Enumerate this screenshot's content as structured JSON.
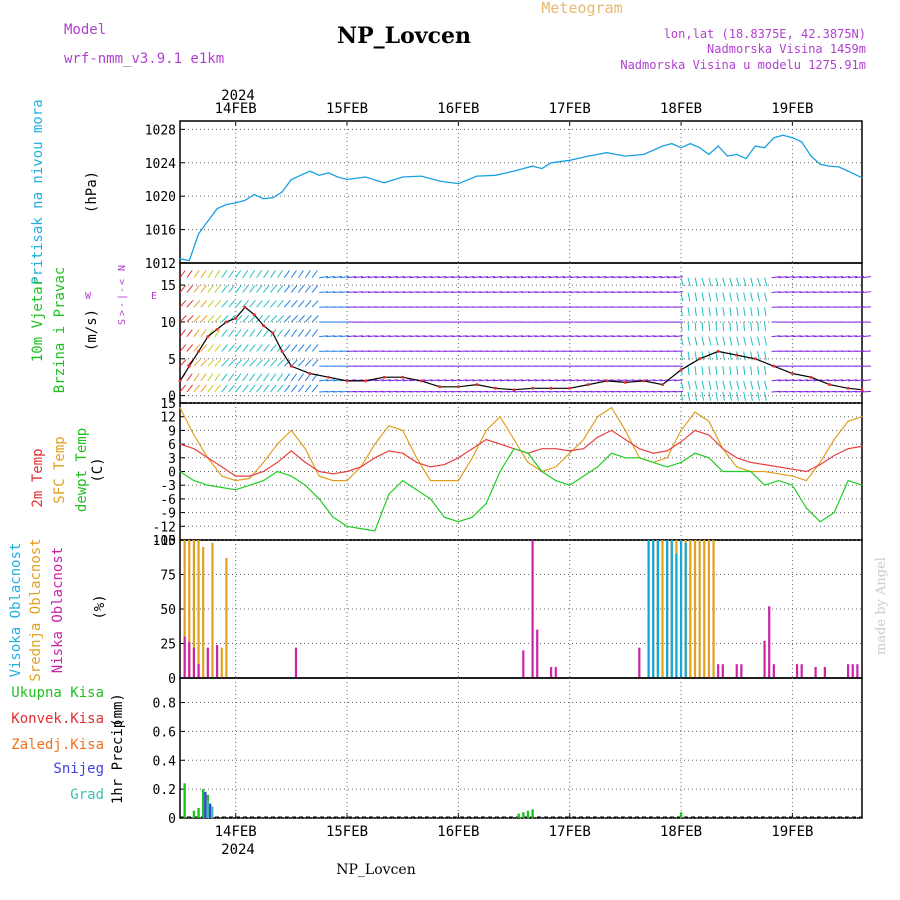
{
  "header": {
    "model_label": "Model",
    "model_name": "wrf-nmm_v3.9.1 e1km",
    "station": "NP_Lovcen",
    "product": "Meteogram",
    "lonlat": "lon,lat (18.8375E, 42.3875N)",
    "elevation": "Nadmorska Visina 1459m",
    "model_elevation": "Nadmorska Visina u modelu 1275.91m",
    "footer_station": "NP_Lovcen",
    "credit": "made by Angel"
  },
  "time_axis": {
    "year": "2024",
    "day_labels": [
      "14FEB",
      "15FEB",
      "16FEB",
      "17FEB",
      "18FEB",
      "19FEB"
    ],
    "day_hours": [
      12,
      36,
      60,
      84,
      108,
      132
    ],
    "range_hours": [
      0,
      147
    ]
  },
  "colors": {
    "pressure": "#1aa0e0",
    "temp2m": "#e84040",
    "sfc": "#e0a020",
    "dew": "#22cc22",
    "high": "#10a8e0",
    "mid": "#e0a020",
    "low": "#cc22aa",
    "snow": "#4040e0",
    "grid": "#666666",
    "purple": "#b040d0",
    "cyan": "#20b0e0",
    "green": "#20c020",
    "red": "#e03030",
    "orange": "#f07020",
    "gray_credit": "#cccccc",
    "wind_low": "#e03030",
    "wind_mid": "#20c0c0",
    "wind_high": "#8020e0"
  },
  "chart_data": [
    {
      "type": "line",
      "panel": "pressure",
      "ylabel_main": "Pritisak na nivou mora",
      "unit": "(hPa)",
      "yticks": [
        1012,
        1016,
        1020,
        1024,
        1028
      ],
      "ylim": [
        1012,
        1029
      ],
      "series": [
        {
          "name": "Pritisak na nivou mora",
          "x": [
            0,
            2,
            4,
            6,
            8,
            10,
            12,
            14,
            16,
            18,
            20,
            22,
            24,
            26,
            28,
            30,
            32,
            34,
            36,
            40,
            44,
            48,
            52,
            56,
            60,
            64,
            68,
            72,
            76,
            78,
            80,
            84,
            88,
            92,
            96,
            100,
            104,
            106,
            108,
            110,
            112,
            114,
            116,
            118,
            120,
            122,
            124,
            126,
            128,
            130,
            132,
            134,
            136,
            138,
            140,
            142,
            144,
            147
          ],
          "values": [
            1012.5,
            1012.3,
            1015.5,
            1017,
            1018.5,
            1019,
            1019.2,
            1019.5,
            1020.2,
            1019.7,
            1019.8,
            1020.5,
            1022,
            1022.5,
            1023,
            1022.5,
            1022.8,
            1022.3,
            1022.0,
            1022.3,
            1021.6,
            1022.3,
            1022.4,
            1021.8,
            1021.5,
            1022.4,
            1022.5,
            1023.0,
            1023.6,
            1023.3,
            1024,
            1024.3,
            1024.8,
            1025.2,
            1024.8,
            1025.0,
            1026,
            1026.3,
            1025.8,
            1026.3,
            1025.8,
            1025,
            1026,
            1024.8,
            1025.0,
            1024.5,
            1026.0,
            1025.8,
            1027.0,
            1027.3,
            1027.0,
            1026.5,
            1024.8,
            1023.8,
            1023.6,
            1023.5,
            1023.0,
            1022.2
          ]
        }
      ]
    },
    {
      "type": "line",
      "panel": "wind",
      "ylabel_main": "10m Vjetar",
      "ylabel_sub": "Brzina i Pravac",
      "unit": "(m/s)",
      "yticks": [
        0,
        5,
        10,
        15
      ],
      "ylim": [
        -1,
        18
      ],
      "direction_labels": [
        "N",
        "<",
        "-",
        "|",
        "-",
        ">",
        "S"
      ],
      "direction_we": [
        "W",
        "E"
      ],
      "series": [
        {
          "name": "10m Vjetar",
          "x": [
            0,
            2,
            4,
            6,
            8,
            10,
            12,
            14,
            16,
            18,
            20,
            22,
            24,
            28,
            32,
            36,
            40,
            44,
            48,
            52,
            56,
            60,
            64,
            68,
            72,
            76,
            80,
            84,
            88,
            92,
            96,
            100,
            104,
            108,
            112,
            116,
            120,
            124,
            128,
            132,
            136,
            140,
            144,
            147
          ],
          "values": [
            2,
            4,
            6,
            8,
            9,
            10,
            10.5,
            12,
            11,
            9.5,
            8.5,
            6,
            4,
            3,
            2.5,
            2,
            2,
            2.5,
            2.5,
            2,
            1.2,
            1.2,
            1.5,
            1,
            0.8,
            1,
            1,
            1,
            1.5,
            2,
            1.8,
            2,
            1.5,
            3.5,
            5,
            6,
            5.5,
            5,
            4,
            3,
            2.5,
            1.5,
            1,
            0.8
          ]
        }
      ]
    },
    {
      "type": "line",
      "panel": "temperature",
      "ylabels": [
        "2m Temp",
        "SFC Temp",
        "dewpt Temp"
      ],
      "unit": "(C)",
      "yticks": [
        15,
        12,
        9,
        6,
        3,
        0,
        -3,
        -6,
        -9,
        -12,
        -15
      ],
      "ylim": [
        -15,
        15
      ],
      "series": [
        {
          "name": "2m Temp",
          "x": [
            0,
            3,
            6,
            9,
            12,
            15,
            18,
            21,
            24,
            27,
            30,
            33,
            36,
            39,
            42,
            45,
            48,
            51,
            54,
            57,
            60,
            63,
            66,
            69,
            72,
            75,
            78,
            81,
            84,
            87,
            90,
            93,
            96,
            99,
            102,
            105,
            108,
            111,
            114,
            117,
            120,
            123,
            126,
            129,
            132,
            135,
            138,
            141,
            144,
            147
          ],
          "values": [
            6,
            5,
            3,
            1,
            -1,
            -1,
            0,
            2,
            4.5,
            2,
            0,
            -0.5,
            0,
            1,
            3,
            4.5,
            4,
            2,
            1,
            1.5,
            3,
            5,
            7,
            6,
            5,
            4,
            5,
            5,
            4.5,
            5,
            7.5,
            9,
            7,
            5,
            4,
            4.5,
            6.5,
            9,
            8,
            5,
            3,
            2,
            1.5,
            1,
            0.5,
            0,
            1.5,
            3.5,
            5,
            5.5
          ]
        },
        {
          "name": "SFC Temp",
          "x": [
            0,
            3,
            6,
            9,
            12,
            15,
            18,
            21,
            24,
            27,
            30,
            33,
            36,
            39,
            42,
            45,
            48,
            51,
            54,
            57,
            60,
            63,
            66,
            69,
            72,
            75,
            78,
            81,
            84,
            87,
            90,
            93,
            96,
            99,
            102,
            105,
            108,
            111,
            114,
            117,
            120,
            123,
            126,
            129,
            132,
            135,
            138,
            141,
            144,
            147
          ],
          "values": [
            14,
            8,
            3,
            -1,
            -2,
            -1.5,
            2,
            6,
            9,
            5,
            -1,
            -2,
            -2,
            1,
            6,
            10,
            9,
            3,
            -2,
            -2,
            -2,
            3,
            9,
            12,
            7,
            2,
            0,
            1,
            4,
            7,
            12,
            14,
            9,
            3,
            2,
            3,
            9,
            13,
            11,
            5,
            1,
            0,
            0,
            -0.5,
            -1,
            -2,
            2,
            7,
            11,
            12
          ]
        },
        {
          "name": "dewpt Temp",
          "x": [
            0,
            3,
            6,
            9,
            12,
            15,
            18,
            21,
            24,
            27,
            30,
            33,
            36,
            39,
            42,
            45,
            48,
            51,
            54,
            57,
            60,
            63,
            66,
            69,
            72,
            75,
            78,
            81,
            84,
            87,
            90,
            93,
            96,
            99,
            102,
            105,
            108,
            111,
            114,
            117,
            120,
            123,
            126,
            129,
            132,
            135,
            138,
            141,
            144,
            147
          ],
          "values": [
            0,
            -2,
            -3,
            -3.5,
            -4,
            -3,
            -2,
            0,
            -1,
            -3,
            -6,
            -10,
            -12,
            -12.5,
            -13,
            -5,
            -2,
            -4,
            -6,
            -10,
            -11,
            -10,
            -7,
            0,
            5,
            4,
            0,
            -2,
            -3,
            -1,
            1,
            4,
            3,
            3,
            2,
            1,
            2,
            4,
            3,
            0,
            0,
            0,
            -3,
            -2,
            -3,
            -8,
            -11,
            -9,
            -2,
            -3
          ]
        }
      ]
    },
    {
      "type": "bar",
      "panel": "cloud",
      "ylabels": [
        "Visoka Oblacnost",
        "Srednja Oblacnost",
        "Niska Oblacnost"
      ],
      "unit": "(%)",
      "yticks": [
        0,
        25,
        50,
        75,
        100
      ],
      "ylim": [
        0,
        100
      ],
      "series": [
        {
          "name": "Srednja Oblacnost",
          "x": [
            1,
            2,
            3,
            4,
            5,
            7,
            9,
            10,
            101,
            102,
            103,
            104,
            105,
            106,
            107,
            108,
            109,
            110,
            111,
            112,
            113,
            114,
            115
          ],
          "values": [
            100,
            100,
            100,
            100,
            95,
            98,
            22,
            87,
            100,
            100,
            100,
            100,
            100,
            100,
            100,
            100,
            100,
            100,
            100,
            100,
            100,
            100,
            100
          ]
        },
        {
          "name": "Visoka Oblacnost",
          "x": [
            101,
            102,
            103,
            105,
            106,
            107,
            108,
            109
          ],
          "values": [
            100,
            100,
            100,
            100,
            100,
            90,
            100,
            98
          ]
        },
        {
          "name": "Niska Oblacnost",
          "x": [
            1,
            2,
            3,
            4,
            6,
            8,
            25,
            74,
            76,
            77,
            80,
            81,
            99,
            116,
            117,
            120,
            121,
            126,
            127,
            128,
            133,
            134,
            137,
            139,
            144,
            145,
            146
          ],
          "values": [
            30,
            26,
            22,
            10,
            22,
            24,
            22,
            20,
            100,
            35,
            8,
            8,
            22,
            10,
            10,
            10,
            10,
            27,
            52,
            10,
            10,
            10,
            8,
            8,
            10,
            10,
            10
          ]
        }
      ]
    },
    {
      "type": "bar",
      "panel": "precip",
      "ylabels": [
        "Ukupna Kisa",
        "Konvek.Kisa",
        "Zaledj.Kisa",
        "Snijeg",
        "Grad"
      ],
      "ylabel_main": "1hr Precip",
      "unit": "(mm)",
      "yticks": [
        0,
        0.2,
        0.4,
        0.6,
        0.8
      ],
      "ylim": [
        0,
        0.97
      ],
      "series": [
        {
          "name": "Ukupna Kisa",
          "x": [
            1,
            3,
            4,
            5,
            6,
            73,
            74,
            75,
            76,
            108
          ],
          "values": [
            0.24,
            0.05,
            0.07,
            0.2,
            0.16,
            0.03,
            0.04,
            0.05,
            0.06,
            0.04
          ]
        },
        {
          "name": "Snijeg",
          "x": [
            5,
            6
          ],
          "values": [
            0.18,
            0.1
          ]
        },
        {
          "name": "Grad",
          "x": [
            5,
            6
          ],
          "values": [
            0.12,
            0.08
          ]
        }
      ]
    }
  ]
}
